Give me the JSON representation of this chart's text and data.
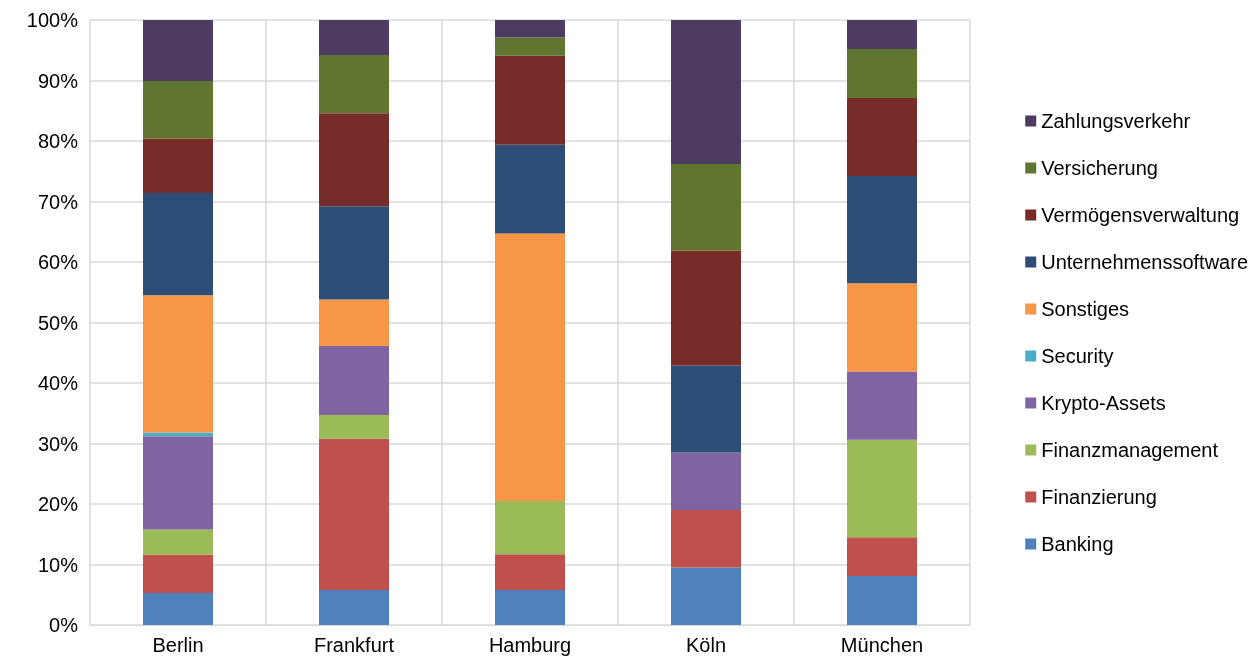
{
  "chart_data": {
    "type": "bar",
    "stacked": true,
    "categories": [
      "Berlin",
      "Frankfurt",
      "Hamburg",
      "Köln",
      "München"
    ],
    "series": [
      {
        "name": "Banking",
        "color": "#4f81bd",
        "values": [
          5.3,
          5.8,
          5.8,
          9.5,
          8.1
        ]
      },
      {
        "name": "Finanzierung",
        "color": "#c0504d",
        "values": [
          6.3,
          25.0,
          5.9,
          9.5,
          6.4
        ]
      },
      {
        "name": "Finanzmanagement",
        "color": "#9bbb59",
        "values": [
          4.2,
          3.9,
          8.8,
          0,
          16.1
        ]
      },
      {
        "name": "Krypto-Assets",
        "color": "#8064a2",
        "values": [
          15.4,
          11.4,
          0,
          9.5,
          11.3
        ]
      },
      {
        "name": "Security",
        "color": "#4bacc6",
        "values": [
          0.6,
          0,
          0,
          0,
          0
        ]
      },
      {
        "name": "Sonstiges",
        "color": "#f79646",
        "values": [
          22.7,
          7.7,
          44.2,
          0,
          14.6
        ]
      },
      {
        "name": "Unternehmenssoftware",
        "color": "#2c4d75",
        "values": [
          16.9,
          15.4,
          14.7,
          14.4,
          17.7
        ]
      },
      {
        "name": "Vermögensverwaltung",
        "color": "#772c2a",
        "values": [
          9.0,
          15.4,
          14.7,
          19.0,
          12.9
        ]
      },
      {
        "name": "Versicherung",
        "color": "#5f7530",
        "values": [
          9.5,
          9.6,
          3.0,
          14.3,
          8.1
        ]
      },
      {
        "name": "Zahlungsverkehr",
        "color": "#4d3b62",
        "values": [
          10.1,
          5.8,
          2.9,
          23.8,
          4.8
        ]
      }
    ],
    "ylim": [
      0,
      100
    ],
    "yticks": [
      {
        "value": 0,
        "label": "0%"
      },
      {
        "value": 10,
        "label": "10%"
      },
      {
        "value": 20,
        "label": "20%"
      },
      {
        "value": 30,
        "label": "30%"
      },
      {
        "value": 40,
        "label": "40%"
      },
      {
        "value": 50,
        "label": "50%"
      },
      {
        "value": 60,
        "label": "60%"
      },
      {
        "value": 70,
        "label": "70%"
      },
      {
        "value": 80,
        "label": "80%"
      },
      {
        "value": 90,
        "label": "90%"
      },
      {
        "value": 100,
        "label": "100%"
      }
    ],
    "grid": true,
    "legend": "right"
  }
}
